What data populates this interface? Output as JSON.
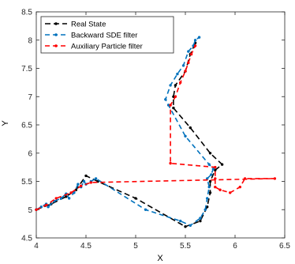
{
  "chart_data": {
    "type": "line",
    "xlabel": "X",
    "ylabel": "Y",
    "xlim": [
      4,
      6.5
    ],
    "ylim": [
      4.5,
      8.5
    ],
    "xticks": [
      "4",
      "4.5",
      "5",
      "5.5",
      "6",
      "6.5"
    ],
    "yticks": [
      "4.5",
      "5",
      "5.5",
      "6",
      "6.5",
      "7",
      "7.5",
      "8",
      "8.5"
    ],
    "grid": false,
    "legend_position": "top-left",
    "series": [
      {
        "name": "Real State",
        "color": "#000000",
        "dash": "long-dash",
        "marker": "dot",
        "points": [
          [
            4.0,
            5.0
          ],
          [
            4.15,
            5.1
          ],
          [
            4.3,
            5.23
          ],
          [
            4.4,
            5.35
          ],
          [
            4.5,
            5.6
          ],
          [
            4.62,
            5.5
          ],
          [
            5.0,
            5.2
          ],
          [
            5.5,
            4.7
          ],
          [
            5.65,
            4.8
          ],
          [
            5.72,
            5.05
          ],
          [
            5.75,
            5.3
          ],
          [
            5.75,
            5.5
          ],
          [
            5.8,
            5.7
          ],
          [
            5.87,
            5.8
          ],
          [
            5.75,
            6.0
          ],
          [
            5.55,
            6.45
          ],
          [
            5.38,
            6.8
          ],
          [
            5.38,
            7.0
          ],
          [
            5.4,
            7.2
          ],
          [
            5.5,
            7.45
          ],
          [
            5.55,
            7.75
          ],
          [
            5.6,
            7.95
          ]
        ]
      },
      {
        "name": "Backward SDE filter",
        "color": "#0072BD",
        "dash": "dash",
        "marker": "dot",
        "points": [
          [
            4.0,
            5.0
          ],
          [
            4.05,
            5.05
          ],
          [
            4.1,
            5.1
          ],
          [
            4.12,
            5.05
          ],
          [
            4.18,
            5.15
          ],
          [
            4.25,
            5.2
          ],
          [
            4.3,
            5.28
          ],
          [
            4.33,
            5.2
          ],
          [
            4.38,
            5.3
          ],
          [
            4.42,
            5.45
          ],
          [
            4.45,
            5.4
          ],
          [
            4.48,
            5.5
          ],
          [
            4.5,
            5.45
          ],
          [
            4.55,
            5.5
          ],
          [
            4.6,
            5.55
          ],
          [
            5.1,
            5.0
          ],
          [
            5.45,
            4.8
          ],
          [
            5.55,
            4.72
          ],
          [
            5.65,
            4.85
          ],
          [
            5.7,
            5.0
          ],
          [
            5.72,
            5.2
          ],
          [
            5.74,
            5.4
          ],
          [
            5.72,
            5.55
          ],
          [
            5.76,
            5.62
          ],
          [
            5.78,
            5.72
          ],
          [
            5.74,
            5.8
          ],
          [
            5.5,
            6.3
          ],
          [
            5.33,
            6.85
          ],
          [
            5.3,
            6.95
          ],
          [
            5.35,
            7.2
          ],
          [
            5.42,
            7.4
          ],
          [
            5.48,
            7.55
          ],
          [
            5.53,
            7.8
          ],
          [
            5.58,
            7.9
          ],
          [
            5.6,
            8.0
          ],
          [
            5.64,
            8.05
          ]
        ]
      },
      {
        "name": "Auxiliary Particle filter",
        "color": "#FF0000",
        "dash": "dash",
        "marker": "dot",
        "points": [
          [
            4.0,
            5.0
          ],
          [
            4.1,
            5.08
          ],
          [
            4.2,
            5.2
          ],
          [
            4.35,
            5.3
          ],
          [
            4.45,
            5.42
          ],
          [
            4.55,
            5.48
          ],
          [
            6.4,
            5.55
          ],
          [
            6.1,
            5.55
          ],
          [
            6.05,
            5.4
          ],
          [
            5.95,
            5.3
          ],
          [
            5.85,
            5.35
          ],
          [
            5.8,
            5.4
          ],
          [
            5.8,
            5.55
          ],
          [
            5.8,
            5.75
          ],
          [
            5.35,
            5.82
          ],
          [
            5.35,
            6.85
          ],
          [
            5.4,
            7.0
          ],
          [
            5.45,
            7.25
          ],
          [
            5.5,
            7.45
          ],
          [
            5.53,
            7.6
          ],
          [
            5.56,
            7.75
          ],
          [
            5.6,
            7.9
          ]
        ]
      }
    ]
  }
}
